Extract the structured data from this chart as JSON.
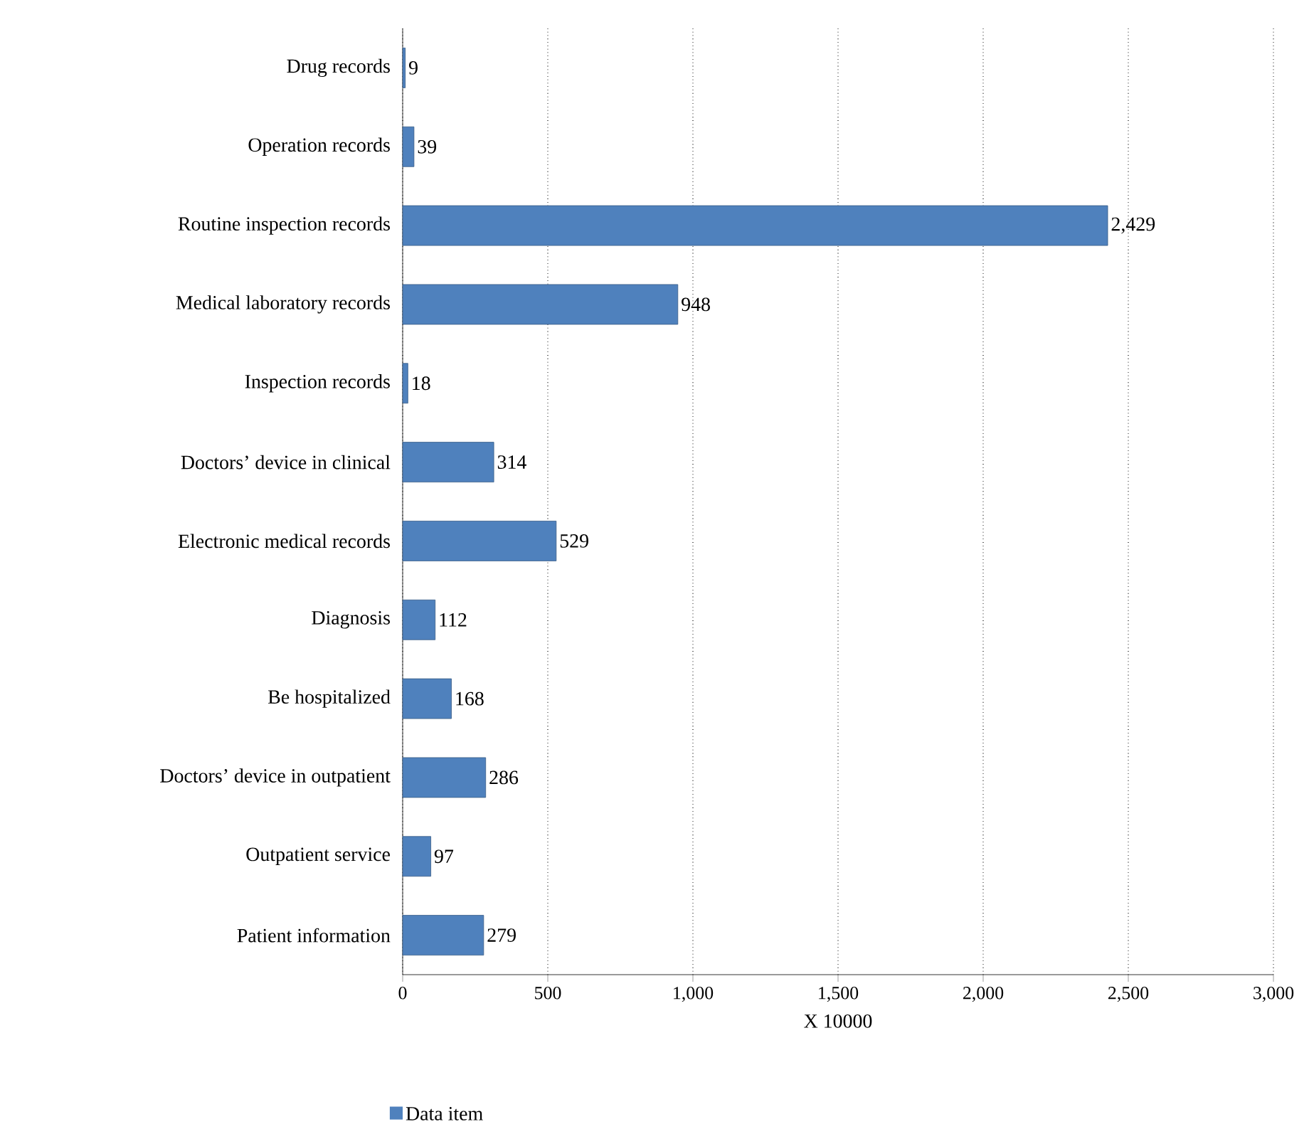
{
  "chart_data": {
    "type": "bar",
    "orientation": "horizontal",
    "xlabel": "X 10000",
    "categories": [
      "Drug records",
      "Operation records",
      "Routine inspection records",
      "Medical laboratory records",
      "Inspection records",
      "Doctors’ device in clinical",
      "Electronic medical records",
      "Diagnosis",
      "Be hospitalized",
      "Doctors’ device in outpatient",
      "Outpatient service",
      "Patient information"
    ],
    "series": [
      {
        "name": "Data item",
        "color": "#4f81bd",
        "values": [
          9,
          39,
          2429,
          948,
          18,
          314,
          529,
          112,
          168,
          286,
          97,
          279
        ],
        "value_labels": [
          "9",
          "39",
          "2,429",
          "948",
          "18",
          "314",
          "529",
          "112",
          "168",
          "286",
          "97",
          "279"
        ]
      }
    ],
    "xlim": [
      0,
      3000
    ],
    "xticks": [
      0,
      500,
      {
        "value": 1000,
        "label": "1,000"
      },
      {
        "value": 1500,
        "label": "1,500"
      },
      {
        "value": 2000,
        "label": "2,000"
      },
      {
        "value": 2500,
        "label": "2,500"
      },
      {
        "value": 3000,
        "label": "3,000"
      }
    ],
    "grid": "x",
    "legend": "bottom"
  }
}
